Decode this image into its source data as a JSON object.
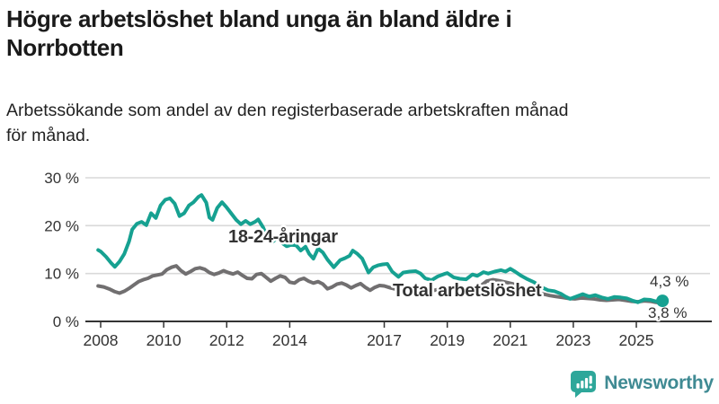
{
  "title": {
    "text": "Högre arbetslöshet bland unga än bland äldre i Norrbotten",
    "lines": [
      "Högre arbetslöshet bland unga än bland äldre i",
      "Norrbotten"
    ]
  },
  "subtitle": {
    "text": "Arbetssökande som andel av den registerbaserade arbetskraften månad för månad.",
    "lines": [
      "Arbetssökande som andel av den registerbaserade arbetskraften månad",
      "för månad."
    ]
  },
  "branding": {
    "name": "Newsworthy",
    "icon": "newsworthy-speech-bubble-chart-icon",
    "wordmark_color": "#3f8a93",
    "icon_color": "#2ea79a"
  },
  "colors": {
    "youth_line": "#16a191",
    "total_line": "#716f70",
    "grid": "#d9d9d9",
    "axis": "#333333",
    "label_text": "#333333"
  },
  "chart_data": {
    "type": "line",
    "unit": "percent",
    "x_axis": {
      "tick_labels": [
        "2008",
        "2010",
        "2012",
        "2014",
        "2017",
        "2019",
        "2021",
        "2023",
        "2025"
      ],
      "tick_values": [
        2008,
        2010,
        2012,
        2014,
        2017,
        2019,
        2021,
        2023,
        2025
      ],
      "range": [
        2007.5,
        2026.3
      ],
      "frequency": "monthly"
    },
    "y_axis": {
      "tick_labels": [
        "30 %",
        "20 %",
        "10 %",
        "0 %"
      ],
      "tick_values": [
        30,
        20,
        10,
        0
      ],
      "range": [
        0,
        33
      ],
      "grid": true
    },
    "series": [
      {
        "name": "18-24-åringar",
        "color": "#16a191",
        "end_label": "4,3 %",
        "last_value": 4.3,
        "points": [
          [
            2007.92,
            14.9
          ],
          [
            2008.0,
            14.6
          ],
          [
            2008.17,
            13.5
          ],
          [
            2008.33,
            12.2
          ],
          [
            2008.45,
            11.4
          ],
          [
            2008.6,
            12.5
          ],
          [
            2008.75,
            14.1
          ],
          [
            2008.9,
            16.7
          ],
          [
            2009.0,
            19.2
          ],
          [
            2009.15,
            20.4
          ],
          [
            2009.3,
            20.8
          ],
          [
            2009.45,
            20.1
          ],
          [
            2009.6,
            22.6
          ],
          [
            2009.75,
            21.6
          ],
          [
            2009.9,
            24.2
          ],
          [
            2010.05,
            25.4
          ],
          [
            2010.2,
            25.7
          ],
          [
            2010.35,
            24.6
          ],
          [
            2010.5,
            22.0
          ],
          [
            2010.65,
            22.6
          ],
          [
            2010.8,
            24.2
          ],
          [
            2010.95,
            24.9
          ],
          [
            2011.1,
            26.0
          ],
          [
            2011.2,
            26.4
          ],
          [
            2011.35,
            24.8
          ],
          [
            2011.45,
            21.7
          ],
          [
            2011.55,
            21.2
          ],
          [
            2011.7,
            23.7
          ],
          [
            2011.85,
            24.9
          ],
          [
            2012.0,
            23.8
          ],
          [
            2012.15,
            22.5
          ],
          [
            2012.3,
            21.2
          ],
          [
            2012.45,
            20.3
          ],
          [
            2012.6,
            21.0
          ],
          [
            2012.75,
            20.3
          ],
          [
            2012.9,
            20.8
          ],
          [
            2013.0,
            21.3
          ],
          [
            2013.15,
            19.7
          ],
          [
            2013.3,
            17.4
          ],
          [
            2013.45,
            16.6
          ],
          [
            2013.6,
            17.4
          ],
          [
            2013.75,
            16.4
          ],
          [
            2013.9,
            15.7
          ],
          [
            2014.05,
            16.0
          ],
          [
            2014.2,
            15.9
          ],
          [
            2014.35,
            14.8
          ],
          [
            2014.5,
            15.6
          ],
          [
            2014.62,
            14.1
          ],
          [
            2014.75,
            13.1
          ],
          [
            2014.9,
            15.2
          ],
          [
            2015.05,
            14.4
          ],
          [
            2015.2,
            12.9
          ],
          [
            2015.4,
            11.3
          ],
          [
            2015.6,
            12.8
          ],
          [
            2015.75,
            13.2
          ],
          [
            2015.9,
            13.7
          ],
          [
            2016.0,
            14.8
          ],
          [
            2016.15,
            14.1
          ],
          [
            2016.3,
            13.1
          ],
          [
            2016.5,
            10.2
          ],
          [
            2016.65,
            11.3
          ],
          [
            2016.8,
            11.7
          ],
          [
            2016.95,
            11.9
          ],
          [
            2017.1,
            12.0
          ],
          [
            2017.25,
            10.4
          ],
          [
            2017.45,
            9.3
          ],
          [
            2017.6,
            10.2
          ],
          [
            2017.8,
            10.4
          ],
          [
            2018.0,
            10.5
          ],
          [
            2018.15,
            10.0
          ],
          [
            2018.3,
            9.0
          ],
          [
            2018.5,
            8.6
          ],
          [
            2018.7,
            9.4
          ],
          [
            2018.9,
            9.9
          ],
          [
            2019.0,
            10.1
          ],
          [
            2019.2,
            9.2
          ],
          [
            2019.4,
            8.9
          ],
          [
            2019.6,
            8.8
          ],
          [
            2019.8,
            9.8
          ],
          [
            2019.95,
            9.5
          ],
          [
            2020.15,
            10.3
          ],
          [
            2020.3,
            10.0
          ],
          [
            2020.5,
            10.4
          ],
          [
            2020.7,
            10.7
          ],
          [
            2020.85,
            10.4
          ],
          [
            2021.0,
            11.0
          ],
          [
            2021.15,
            10.4
          ],
          [
            2021.35,
            9.5
          ],
          [
            2021.55,
            8.8
          ],
          [
            2021.75,
            8.2
          ],
          [
            2022.0,
            7.1
          ],
          [
            2022.2,
            6.5
          ],
          [
            2022.4,
            6.3
          ],
          [
            2022.6,
            5.8
          ],
          [
            2022.75,
            5.2
          ],
          [
            2022.9,
            4.7
          ],
          [
            2023.1,
            5.2
          ],
          [
            2023.3,
            5.7
          ],
          [
            2023.5,
            5.2
          ],
          [
            2023.7,
            5.5
          ],
          [
            2023.9,
            5.0
          ],
          [
            2024.1,
            4.7
          ],
          [
            2024.3,
            5.1
          ],
          [
            2024.5,
            5.0
          ],
          [
            2024.7,
            4.8
          ],
          [
            2024.9,
            4.3
          ],
          [
            2025.05,
            4.0
          ],
          [
            2025.25,
            4.6
          ],
          [
            2025.45,
            4.5
          ],
          [
            2025.6,
            4.2
          ],
          [
            2025.83,
            4.3
          ]
        ]
      },
      {
        "name": "Total arbetslöshet",
        "color": "#716f70",
        "end_label": "3,8 %",
        "last_value": 3.8,
        "points": [
          [
            2007.92,
            7.4
          ],
          [
            2008.1,
            7.2
          ],
          [
            2008.3,
            6.7
          ],
          [
            2008.45,
            6.2
          ],
          [
            2008.6,
            5.9
          ],
          [
            2008.75,
            6.3
          ],
          [
            2008.9,
            6.9
          ],
          [
            2009.05,
            7.6
          ],
          [
            2009.2,
            8.3
          ],
          [
            2009.35,
            8.7
          ],
          [
            2009.5,
            9.0
          ],
          [
            2009.65,
            9.5
          ],
          [
            2009.8,
            9.7
          ],
          [
            2009.95,
            9.9
          ],
          [
            2010.1,
            10.8
          ],
          [
            2010.25,
            11.3
          ],
          [
            2010.4,
            11.6
          ],
          [
            2010.55,
            10.6
          ],
          [
            2010.7,
            9.9
          ],
          [
            2010.85,
            10.4
          ],
          [
            2011.0,
            11.0
          ],
          [
            2011.15,
            11.2
          ],
          [
            2011.3,
            10.9
          ],
          [
            2011.45,
            10.2
          ],
          [
            2011.6,
            9.8
          ],
          [
            2011.75,
            10.1
          ],
          [
            2011.9,
            10.6
          ],
          [
            2012.05,
            10.2
          ],
          [
            2012.2,
            9.9
          ],
          [
            2012.35,
            10.3
          ],
          [
            2012.5,
            9.6
          ],
          [
            2012.65,
            9.0
          ],
          [
            2012.8,
            8.9
          ],
          [
            2012.95,
            9.8
          ],
          [
            2013.1,
            10.0
          ],
          [
            2013.25,
            9.2
          ],
          [
            2013.4,
            8.4
          ],
          [
            2013.55,
            9.0
          ],
          [
            2013.7,
            9.5
          ],
          [
            2013.85,
            9.2
          ],
          [
            2014.0,
            8.2
          ],
          [
            2014.15,
            8.0
          ],
          [
            2014.3,
            8.7
          ],
          [
            2014.45,
            9.0
          ],
          [
            2014.6,
            8.4
          ],
          [
            2014.75,
            8.0
          ],
          [
            2014.9,
            8.3
          ],
          [
            2015.05,
            7.8
          ],
          [
            2015.2,
            6.8
          ],
          [
            2015.35,
            7.2
          ],
          [
            2015.5,
            7.8
          ],
          [
            2015.65,
            8.0
          ],
          [
            2015.8,
            7.6
          ],
          [
            2015.95,
            7.0
          ],
          [
            2016.1,
            7.5
          ],
          [
            2016.25,
            7.9
          ],
          [
            2016.4,
            7.1
          ],
          [
            2016.55,
            6.5
          ],
          [
            2016.7,
            7.1
          ],
          [
            2016.85,
            7.5
          ],
          [
            2017.0,
            7.4
          ],
          [
            2017.2,
            7.0
          ],
          [
            2017.4,
            6.7
          ],
          [
            2017.6,
            7.0
          ],
          [
            2017.8,
            7.2
          ],
          [
            2018.0,
            7.0
          ],
          [
            2018.2,
            6.6
          ],
          [
            2018.4,
            6.4
          ],
          [
            2018.6,
            6.5
          ],
          [
            2018.8,
            6.8
          ],
          [
            2019.0,
            6.9
          ],
          [
            2019.2,
            6.6
          ],
          [
            2019.4,
            6.4
          ],
          [
            2019.6,
            6.6
          ],
          [
            2019.8,
            6.9
          ],
          [
            2020.0,
            7.1
          ],
          [
            2020.25,
            8.4
          ],
          [
            2020.45,
            8.7
          ],
          [
            2020.65,
            8.5
          ],
          [
            2020.85,
            8.2
          ],
          [
            2021.05,
            7.9
          ],
          [
            2021.25,
            7.5
          ],
          [
            2021.5,
            7.0
          ],
          [
            2021.75,
            6.4
          ],
          [
            2022.0,
            5.8
          ],
          [
            2022.25,
            5.4
          ],
          [
            2022.45,
            5.2
          ],
          [
            2022.65,
            5.0
          ],
          [
            2022.85,
            4.8
          ],
          [
            2023.05,
            4.7
          ],
          [
            2023.25,
            4.9
          ],
          [
            2023.45,
            4.8
          ],
          [
            2023.65,
            4.7
          ],
          [
            2023.85,
            4.5
          ],
          [
            2024.05,
            4.4
          ],
          [
            2024.25,
            4.5
          ],
          [
            2024.45,
            4.6
          ],
          [
            2024.65,
            4.4
          ],
          [
            2024.85,
            4.2
          ],
          [
            2025.05,
            4.1
          ],
          [
            2025.25,
            4.3
          ],
          [
            2025.45,
            4.2
          ],
          [
            2025.6,
            4.0
          ],
          [
            2025.83,
            3.8
          ]
        ]
      }
    ],
    "legend_position": "inline-labels",
    "annotations": [
      "4,3 %",
      "3,8 %"
    ]
  }
}
